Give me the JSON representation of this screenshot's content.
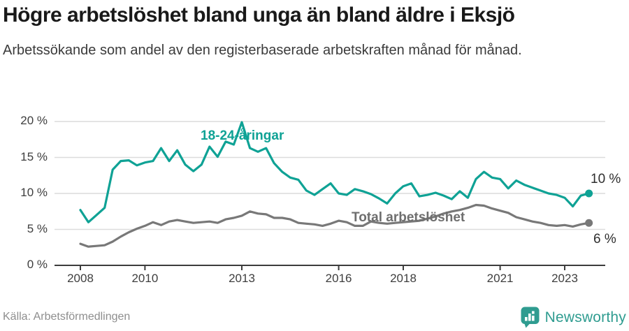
{
  "header": {
    "title": "Högre arbetslöshet bland unga än bland äldre i Eksjö",
    "subtitle": "Arbetssökande som andel av den registerbaserade arbetskraften månad för månad."
  },
  "footer": {
    "source": "Källa: Arbetsförmedlingen",
    "brand": "Newsworthy"
  },
  "colors": {
    "youth_line": "#0fa295",
    "total_line": "#787878",
    "gridline": "#dcdcdc",
    "axis": "#3c3c3c",
    "brand_teal": "#2f9c90"
  },
  "chart_data": {
    "type": "line",
    "title": "Högre arbetslöshet bland unga än bland äldre i Eksjö",
    "subtitle": "Arbetssökande som andel av den registerbaserade arbetskraften månad för månad.",
    "xlabel": "",
    "ylabel": "",
    "grid": "horizontal",
    "legend_position": "inline-annotations",
    "ylim": [
      0,
      21
    ],
    "xlim": [
      2007.2,
      2024.6
    ],
    "y_ticks": [
      {
        "value": 0,
        "label": "0 %"
      },
      {
        "value": 5,
        "label": "5 %"
      },
      {
        "value": 10,
        "label": "10 %"
      },
      {
        "value": 15,
        "label": "15 %"
      },
      {
        "value": 20,
        "label": "20 %"
      }
    ],
    "x_ticks": [
      {
        "value": 2008,
        "label": "2008"
      },
      {
        "value": 2010,
        "label": "2010"
      },
      {
        "value": 2013,
        "label": "2013"
      },
      {
        "value": 2016,
        "label": "2016"
      },
      {
        "value": 2018,
        "label": "2018"
      },
      {
        "value": 2021,
        "label": "2021"
      },
      {
        "value": 2023,
        "label": "2023"
      }
    ],
    "x": [
      2008,
      2008.25,
      2008.5,
      2008.75,
      2009,
      2009.25,
      2009.5,
      2009.75,
      2010,
      2010.25,
      2010.5,
      2010.75,
      2011,
      2011.25,
      2011.5,
      2011.75,
      2012,
      2012.25,
      2012.5,
      2012.75,
      2013,
      2013.25,
      2013.5,
      2013.75,
      2014,
      2014.25,
      2014.5,
      2014.75,
      2015,
      2015.25,
      2015.5,
      2015.75,
      2016,
      2016.25,
      2016.5,
      2016.75,
      2017,
      2017.25,
      2017.5,
      2017.75,
      2018,
      2018.25,
      2018.5,
      2018.75,
      2019,
      2019.25,
      2019.5,
      2019.75,
      2020,
      2020.25,
      2020.5,
      2020.75,
      2021,
      2021.25,
      2021.5,
      2021.75,
      2022,
      2022.25,
      2022.5,
      2022.75,
      2023,
      2023.25,
      2023.5,
      2023.75
    ],
    "series": [
      {
        "name": "18-24-åringar",
        "color": "#0fa295",
        "end_label": "10 %",
        "values": [
          7.7,
          6.0,
          7.0,
          8.0,
          13.3,
          14.5,
          14.6,
          13.9,
          14.3,
          14.5,
          16.3,
          14.5,
          16.0,
          14.0,
          13.1,
          14.0,
          16.5,
          15.1,
          17.2,
          16.8,
          19.9,
          16.3,
          15.8,
          16.3,
          14.2,
          13.0,
          12.2,
          11.9,
          10.4,
          9.8,
          10.6,
          11.4,
          10.0,
          9.8,
          10.6,
          10.3,
          9.9,
          9.3,
          8.6,
          10.0,
          11.0,
          11.4,
          9.6,
          9.8,
          10.1,
          9.7,
          9.2,
          10.3,
          9.4,
          12.0,
          13.0,
          12.2,
          12.0,
          10.7,
          11.8,
          11.2,
          10.8,
          10.4,
          10.0,
          9.8,
          9.4,
          8.2,
          9.7,
          10.0
        ]
      },
      {
        "name": "Total arbetslöshet",
        "color": "#787878",
        "end_label": "6 %",
        "values": [
          3.0,
          2.6,
          2.7,
          2.8,
          3.3,
          4.0,
          4.6,
          5.1,
          5.5,
          6.0,
          5.6,
          6.1,
          6.3,
          6.1,
          5.9,
          6.0,
          6.1,
          5.9,
          6.4,
          6.6,
          6.9,
          7.5,
          7.2,
          7.1,
          6.6,
          6.6,
          6.4,
          5.9,
          5.8,
          5.7,
          5.5,
          5.8,
          6.2,
          6.0,
          5.5,
          5.5,
          6.1,
          5.9,
          5.8,
          5.9,
          6.0,
          6.1,
          6.2,
          6.5,
          6.8,
          7.2,
          7.5,
          7.7,
          8.0,
          8.4,
          8.3,
          7.9,
          7.6,
          7.3,
          6.7,
          6.4,
          6.1,
          5.9,
          5.6,
          5.5,
          5.6,
          5.4,
          5.7,
          5.9
        ]
      }
    ]
  }
}
